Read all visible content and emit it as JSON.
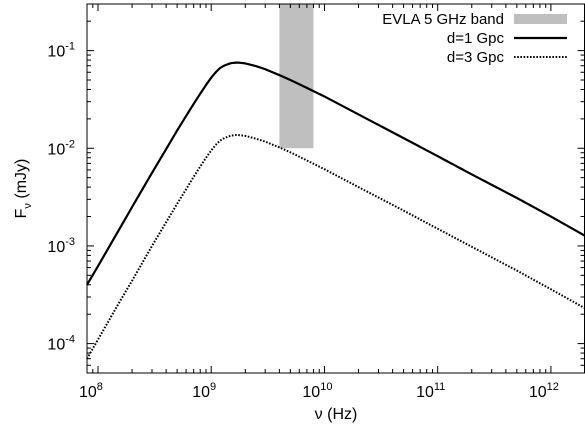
{
  "chart_data": {
    "type": "line",
    "xlabel": "ν (Hz)",
    "ylabel": "Fν (mJy)",
    "xscale": "log",
    "yscale": "log",
    "xlim": [
      80000000,
      2000000000000
    ],
    "ylim": [
      5e-05,
      0.3
    ],
    "grid": false,
    "legend_position": "top-right",
    "x_ticks": [
      {
        "value": 100000000,
        "base": "10",
        "exp": "8"
      },
      {
        "value": 1000000000,
        "base": "10",
        "exp": "9"
      },
      {
        "value": 10000000000,
        "base": "10",
        "exp": "10"
      },
      {
        "value": 100000000000,
        "base": "10",
        "exp": "11"
      },
      {
        "value": 1000000000000,
        "base": "10",
        "exp": "12"
      }
    ],
    "y_ticks": [
      {
        "value": 0.1,
        "base": "10",
        "exp": "-1"
      },
      {
        "value": 0.01,
        "base": "10",
        "exp": "-2"
      },
      {
        "value": 0.001,
        "base": "10",
        "exp": "-3"
      },
      {
        "value": 0.0001,
        "base": "10",
        "exp": "-4"
      }
    ],
    "band": {
      "name": "EVLA 5 GHz band",
      "x_range": [
        4000000000,
        8000000000
      ],
      "y_range": [
        0.01,
        0.3
      ],
      "color": "#bfbfbf"
    },
    "series": [
      {
        "name": "d=1 Gpc",
        "style": "solid",
        "color": "#000000",
        "x": [
          80000000,
          100000000,
          150000000,
          200000000,
          300000000,
          400000000,
          500000000,
          600000000,
          700000000,
          800000000,
          900000000,
          1000000000,
          1100000000,
          1200000000,
          1300000000,
          1500000000,
          1700000000,
          2000000000,
          2500000000,
          3000000000,
          4000000000,
          5000000000,
          7000000000,
          10000000000,
          20000000000,
          50000000000,
          100000000000,
          200000000000,
          500000000000,
          1000000000000,
          2000000000000
        ],
        "y": [
          0.0004,
          0.00062,
          0.0014,
          0.0025,
          0.0056,
          0.0098,
          0.0152,
          0.0214,
          0.0285,
          0.0362,
          0.0445,
          0.0528,
          0.0603,
          0.0665,
          0.0702,
          0.0745,
          0.0755,
          0.074,
          0.0692,
          0.0645,
          0.0561,
          0.05,
          0.0415,
          0.0339,
          0.0222,
          0.0127,
          0.0083,
          0.0054,
          0.0031,
          0.002,
          0.00127
        ]
      },
      {
        "name": "d=3 Gpc",
        "style": "dotted",
        "color": "#000000",
        "x": [
          80000000,
          100000000,
          150000000,
          200000000,
          300000000,
          400000000,
          500000000,
          600000000,
          700000000,
          800000000,
          900000000,
          1000000000,
          1100000000,
          1200000000,
          1300000000,
          1500000000,
          1700000000,
          2000000000,
          2500000000,
          3000000000,
          4000000000,
          5000000000,
          7000000000,
          10000000000,
          20000000000,
          50000000000,
          100000000000,
          200000000000,
          500000000000,
          1000000000000,
          2000000000000
        ],
        "y": [
          7e-05,
          0.00011,
          0.00025,
          0.00044,
          0.001,
          0.00175,
          0.0027,
          0.0038,
          0.0051,
          0.0065,
          0.008,
          0.0095,
          0.0109,
          0.012,
          0.0127,
          0.0135,
          0.0137,
          0.0134,
          0.0125,
          0.0117,
          0.0102,
          0.0091,
          0.0075,
          0.0061,
          0.004,
          0.0023,
          0.0015,
          0.00098,
          0.00056,
          0.00036,
          0.00023
        ]
      }
    ]
  }
}
